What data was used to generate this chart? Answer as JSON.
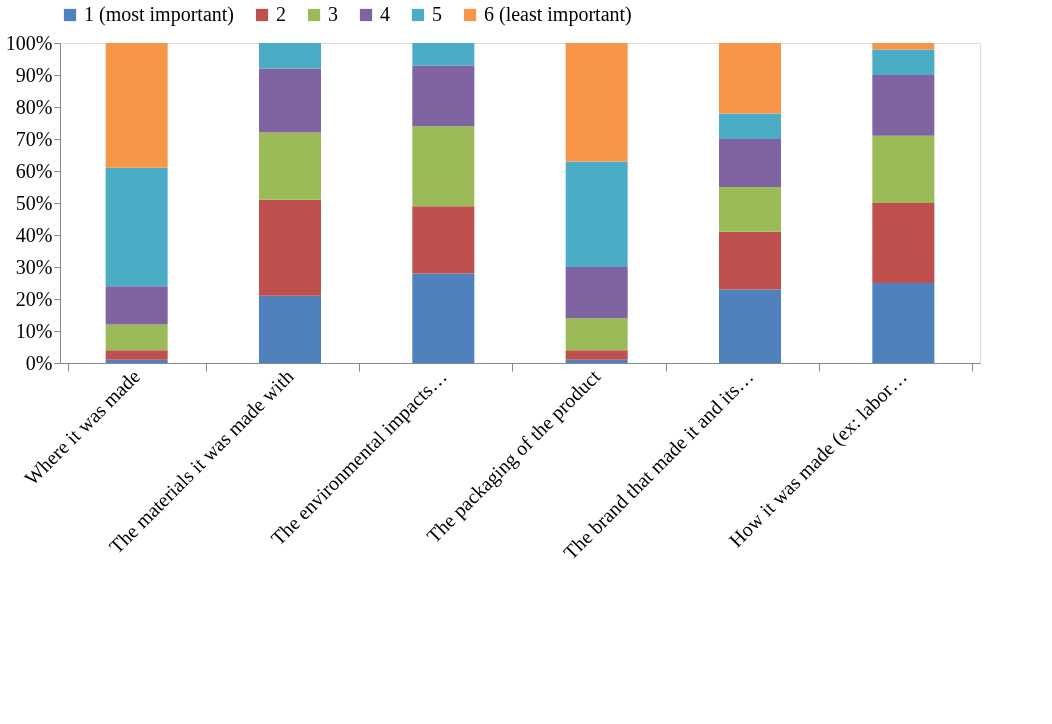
{
  "chart_data": {
    "type": "bar",
    "stacked": true,
    "legend": "top",
    "grid": false,
    "categories": [
      "Where it was made",
      "The materials it was made with",
      "The environmental impacts…",
      "The packaging of the product",
      "The brand that made it and its…",
      "How it was made (ex: labor…"
    ],
    "series": [
      {
        "name": "1 (most important)",
        "color": "#4f81bd",
        "values": [
          1,
          21,
          28,
          1,
          23,
          25
        ]
      },
      {
        "name": "2",
        "color": "#c0504d",
        "values": [
          3,
          30,
          21,
          3,
          18,
          25
        ]
      },
      {
        "name": "3",
        "color": "#9bbb59",
        "values": [
          8,
          21,
          25,
          10,
          14,
          21
        ]
      },
      {
        "name": "4",
        "color": "#8064a2",
        "values": [
          12,
          20,
          19,
          16,
          15,
          19
        ]
      },
      {
        "name": "5",
        "color": "#4bacc6",
        "values": [
          37,
          8,
          7,
          33,
          8,
          8
        ]
      },
      {
        "name": "6 (least important)",
        "color": "#f79646",
        "values": [
          39,
          0,
          0,
          37,
          22,
          2
        ]
      }
    ],
    "ylim": [
      0,
      100
    ],
    "yticks": [
      {
        "value": 0,
        "label": "0%"
      },
      {
        "value": 10,
        "label": "10%"
      },
      {
        "value": 20,
        "label": "20%"
      },
      {
        "value": 30,
        "label": "30%"
      },
      {
        "value": 40,
        "label": "40%"
      },
      {
        "value": 50,
        "label": "50%"
      },
      {
        "value": 60,
        "label": "60%"
      },
      {
        "value": 70,
        "label": "70%"
      },
      {
        "value": 80,
        "label": "80%"
      },
      {
        "value": 90,
        "label": "90%"
      },
      {
        "value": 100,
        "label": "100%"
      }
    ]
  }
}
